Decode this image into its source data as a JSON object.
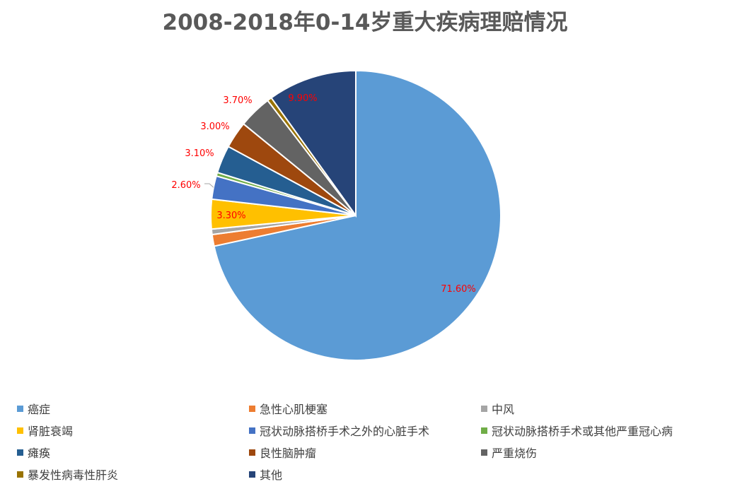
{
  "chart_data": {
    "type": "pie",
    "title": "2008-2018年0-14岁重大疾病理赔情况",
    "legend_position": "bottom",
    "slices": [
      {
        "name": "癌症",
        "value": 71.6,
        "label": "71.60%",
        "color": "#5b9bd5"
      },
      {
        "name": "急性心肌梗塞",
        "value": 1.3,
        "label": "",
        "color": "#ed7d31"
      },
      {
        "name": "中风",
        "value": 0.6,
        "label": "",
        "color": "#a5a5a5"
      },
      {
        "name": "肾脏衰竭",
        "value": 3.3,
        "label": "3.30%",
        "color": "#ffc000"
      },
      {
        "name": "冠状动脉搭桥手术之外的心脏手术",
        "value": 2.6,
        "label": "2.60%",
        "color": "#4472c4"
      },
      {
        "name": "冠状动脉搭桥手术或其他严重冠心病",
        "value": 0.4,
        "label": "",
        "color": "#70ad47"
      },
      {
        "name": "瘫痪",
        "value": 3.1,
        "label": "3.10%",
        "color": "#255e91"
      },
      {
        "name": "良性脑肿瘤",
        "value": 3.0,
        "label": "3.00%",
        "color": "#9e480e"
      },
      {
        "name": "严重烧伤",
        "value": 3.7,
        "label": "3.70%",
        "color": "#636363"
      },
      {
        "name": "暴发性病毒性肝炎",
        "value": 0.5,
        "label": "",
        "color": "#997300"
      },
      {
        "name": "其他",
        "value": 9.9,
        "label": "9.90%",
        "color": "#264478"
      }
    ]
  }
}
